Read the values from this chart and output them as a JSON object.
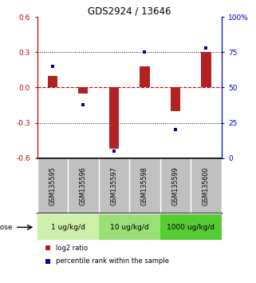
{
  "title": "GDS2924 / 13646",
  "samples": [
    "GSM135595",
    "GSM135596",
    "GSM135597",
    "GSM135598",
    "GSM135599",
    "GSM135600"
  ],
  "log2_ratio": [
    0.1,
    -0.05,
    -0.52,
    0.18,
    -0.2,
    0.3
  ],
  "percentile": [
    65,
    38,
    5,
    75,
    20,
    78
  ],
  "doses": [
    {
      "label": "1 ug/kg/d",
      "samples": [
        0,
        1
      ],
      "color": "#ccf0aa"
    },
    {
      "label": "10 ug/kg/d",
      "samples": [
        2,
        3
      ],
      "color": "#99e077"
    },
    {
      "label": "1000 ug/kg/d",
      "samples": [
        4,
        5
      ],
      "color": "#55cc33"
    }
  ],
  "bar_color": "#b22222",
  "dot_color": "#00008b",
  "ylim": [
    -0.6,
    0.6
  ],
  "yticks_left": [
    -0.6,
    -0.3,
    0.0,
    0.3,
    0.6
  ],
  "yticks_right": [
    0,
    25,
    50,
    75,
    100
  ],
  "left_axis_color": "#cc0000",
  "right_axis_color": "#0000cc",
  "hline_color": "#cc0000",
  "dose_label": "dose",
  "legend_log2": "log2 ratio",
  "legend_pct": "percentile rank within the sample",
  "background_color": "#ffffff",
  "plot_bg": "#ffffff",
  "grid_color": "#000000",
  "label_bg": "#c0c0c0"
}
